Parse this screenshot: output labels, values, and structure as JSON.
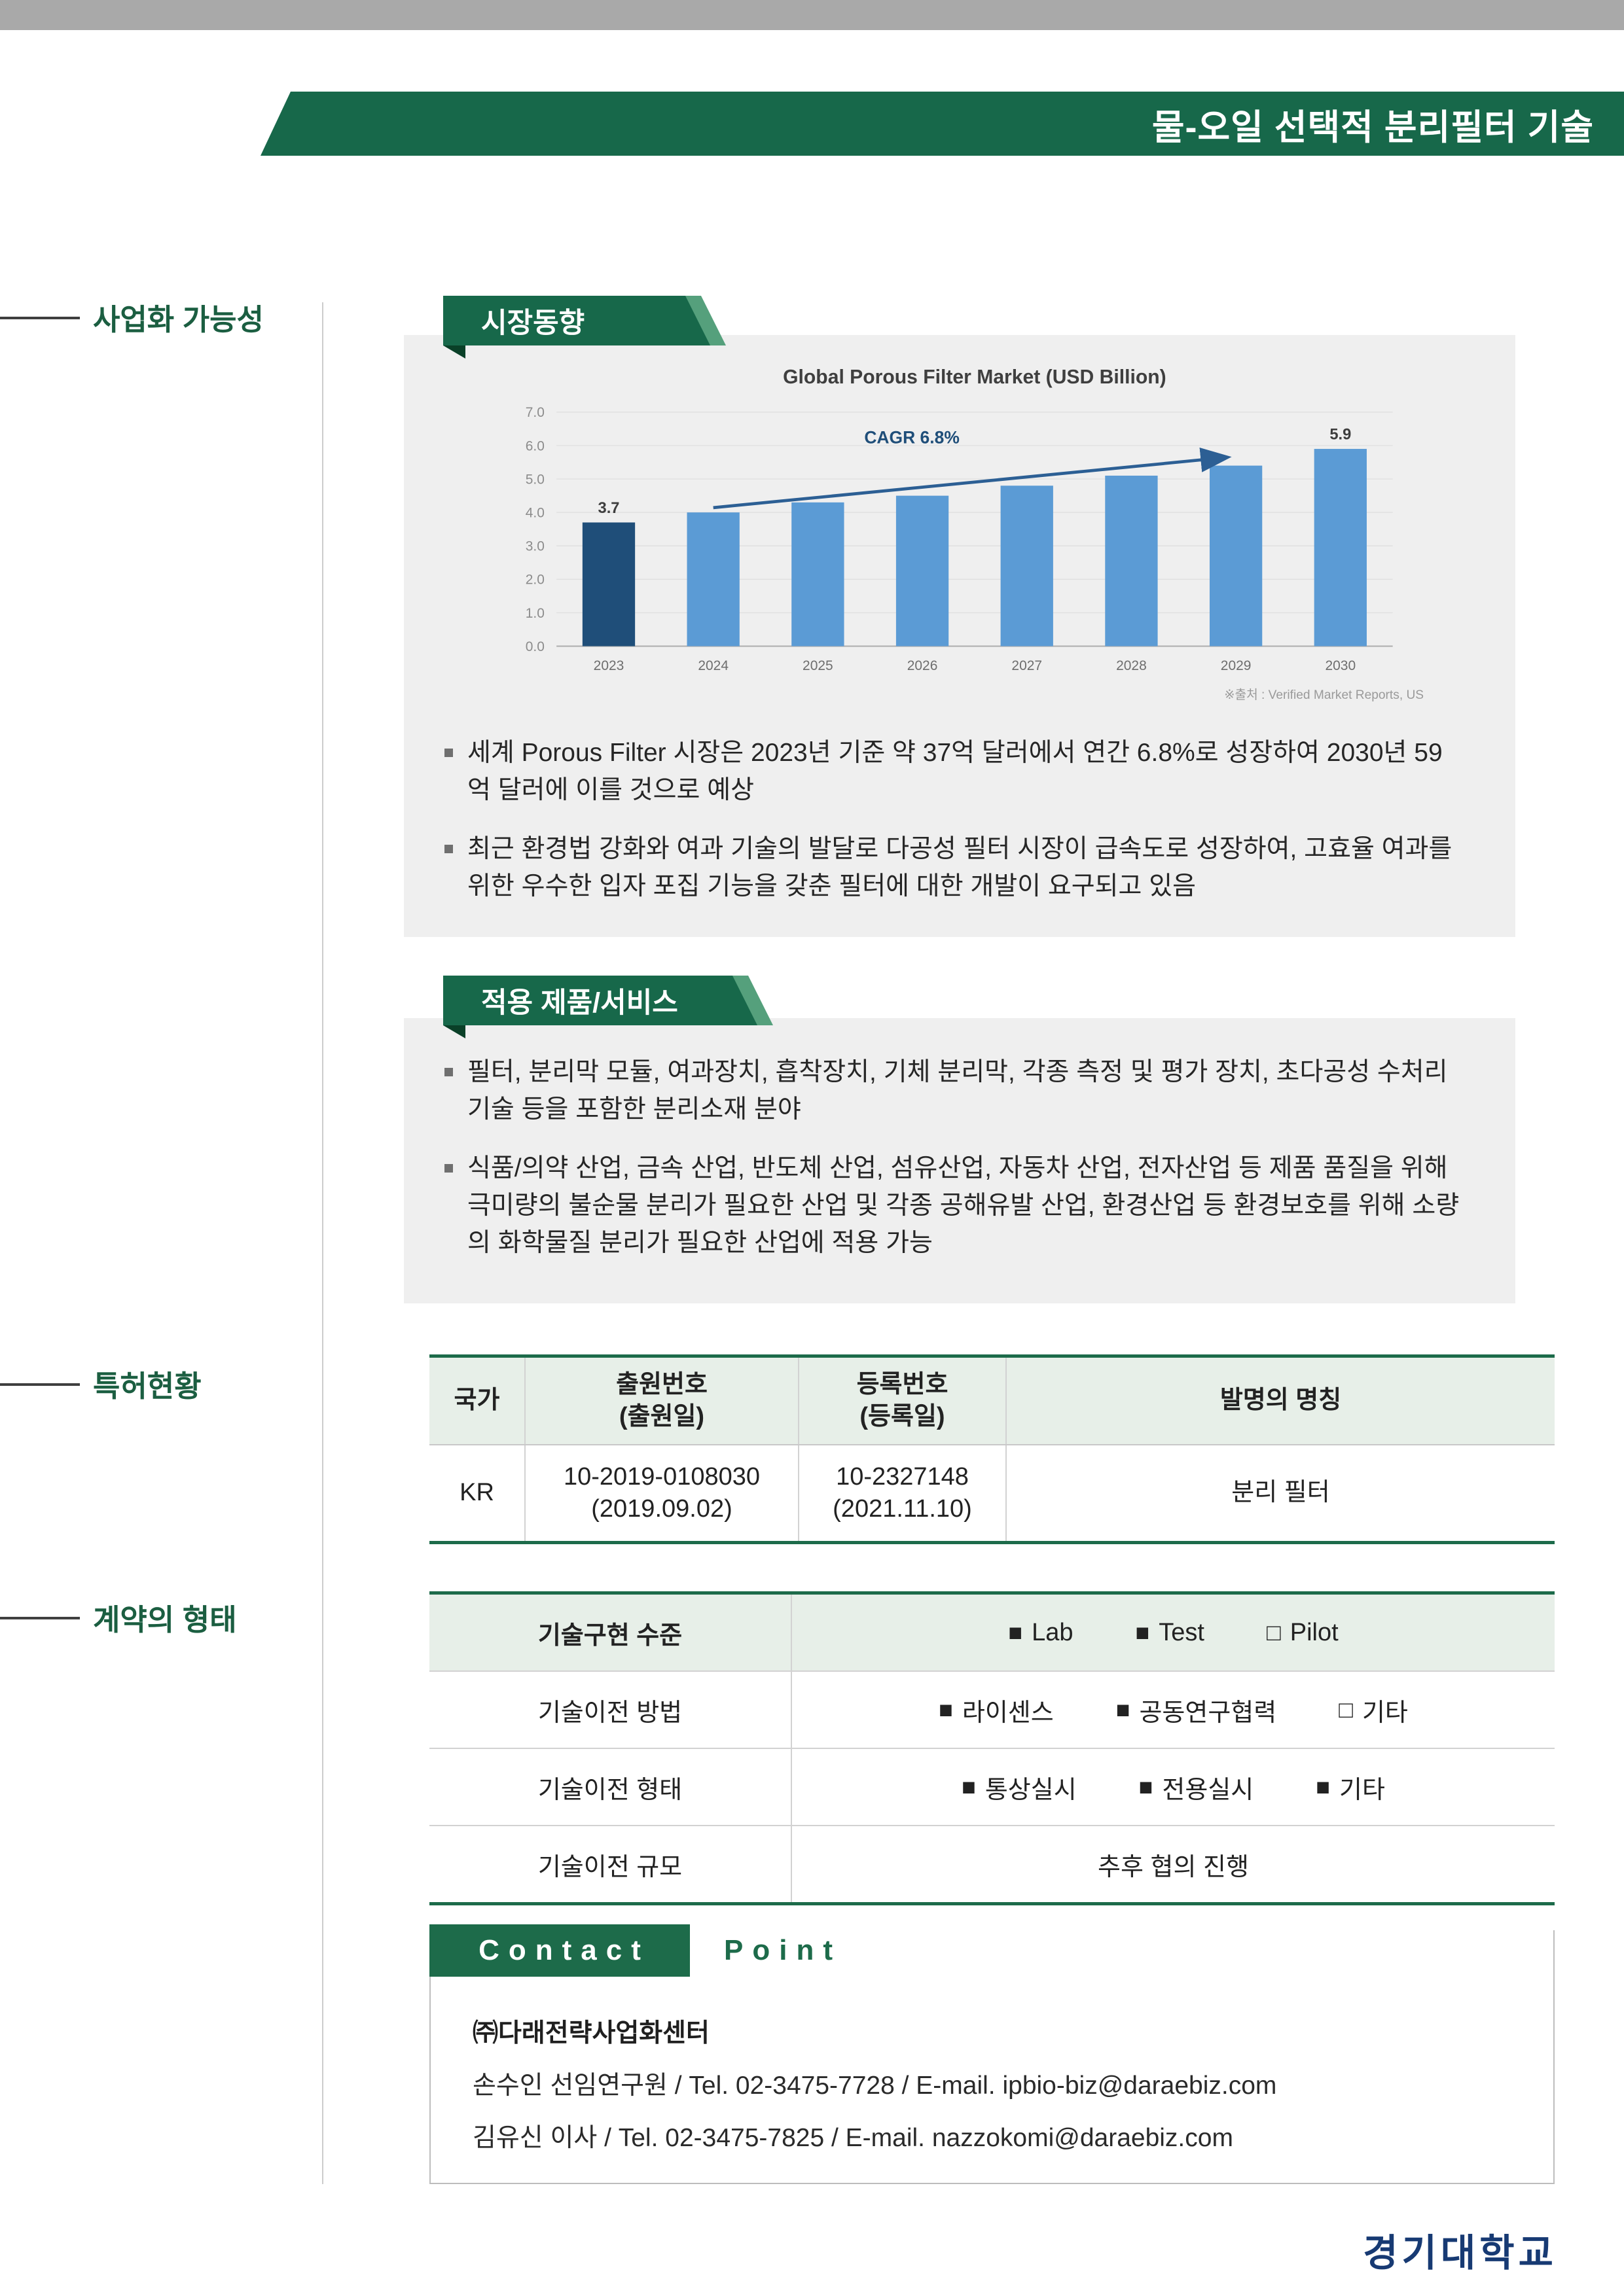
{
  "page": {
    "title": "물-오일 선택적 분리필터 기술",
    "university": "경기대학교"
  },
  "theme": {
    "green": "#17684a",
    "light_green_bg": "#e7efe8",
    "navy": "#173a73"
  },
  "sidebar": {
    "items": [
      {
        "label": "사업화 가능성"
      },
      {
        "label": "특허현황"
      },
      {
        "label": "계약의 형태"
      }
    ]
  },
  "market": {
    "banner": "시장동향",
    "bullets": [
      "세계 Porous Filter 시장은 2023년 기준 약 37억 달러에서 연간 6.8%로 성장하여 2030년 59억 달러에 이를 것으로 예상",
      "최근 환경법 강화와 여과 기술의 발달로 다공성 필터 시장이 급속도로 성장하여, 고효율 여과를 위한 우수한 입자 포집 기능을 갖춘 필터에 대한 개발이 요구되고 있음"
    ]
  },
  "chart_data": {
    "type": "bar",
    "title": "Global Porous Filter Market (USD Billion)",
    "categories": [
      "2023",
      "2024",
      "2025",
      "2026",
      "2027",
      "2028",
      "2029",
      "2030"
    ],
    "values": [
      3.7,
      4.0,
      4.3,
      4.5,
      4.8,
      5.1,
      5.4,
      5.9
    ],
    "xlabel": "",
    "ylabel": "",
    "ylim": [
      0,
      7
    ],
    "ytick_step": 1,
    "grid": true,
    "legend": "none",
    "annotation": "CAGR 6.8%",
    "labeled_values": [
      {
        "category": "2023",
        "label": "3.7"
      },
      {
        "category": "2030",
        "label": "5.9"
      }
    ],
    "colors": {
      "highlight_bar": "#1f4e79",
      "bar": "#5b9bd5",
      "arrow": "#2c5f94"
    },
    "source": "※출처 : Verified Market Reports, US"
  },
  "products": {
    "banner": "적용 제품/서비스",
    "bullets": [
      "필터, 분리막 모듈, 여과장치, 흡착장치, 기체 분리막, 각종 측정 및 평가 장치, 초다공성 수처리 기술 등을 포함한 분리소재 분야",
      "식품/의약 산업, 금속 산업, 반도체 산업, 섬유산업, 자동차 산업, 전자산업 등 제품 품질을 위해 극미량의 불순물 분리가 필요한 산업 및 각종 공해유발 산업, 환경산업 등 환경보호를 위해 소량의 화학물질 분리가 필요한 산업에 적용 가능"
    ]
  },
  "patent": {
    "headers": [
      "국가",
      "출원번호\n(출원일)",
      "등록번호\n(등록일)",
      "발명의 명칭"
    ],
    "rows": [
      [
        "KR",
        "10-2019-0108030\n(2019.09.02)",
        "10-2327148\n(2021.11.10)",
        "분리 필터"
      ]
    ]
  },
  "contract": {
    "rows": [
      {
        "label": "기술구현 수준",
        "options": [
          {
            "box": "■",
            "label": "Lab"
          },
          {
            "box": "■",
            "label": "Test"
          },
          {
            "box": "□",
            "label": "Pilot"
          }
        ]
      },
      {
        "label": "기술이전 방법",
        "options": [
          {
            "box": "■",
            "label": "라이센스"
          },
          {
            "box": "■",
            "label": "공동연구협력"
          },
          {
            "box": "□",
            "label": "기타"
          }
        ]
      },
      {
        "label": "기술이전 형태",
        "options": [
          {
            "box": "■",
            "label": "통상실시"
          },
          {
            "box": "■",
            "label": "전용실시"
          },
          {
            "box": "■",
            "label": "기타"
          }
        ]
      },
      {
        "label": "기술이전 규모",
        "value": "추후 협의 진행"
      }
    ]
  },
  "contact": {
    "label_left": "Contact",
    "label_right": "Point",
    "company": "㈜다래전략사업화센터",
    "lines": [
      "손수인 선임연구원 / Tel. 02-3475-7728 / E-mail. ipbio-biz@daraebiz.com",
      "김유신 이사 / Tel. 02-3475-7825 / E-mail. nazzokomi@daraebiz.com"
    ]
  }
}
